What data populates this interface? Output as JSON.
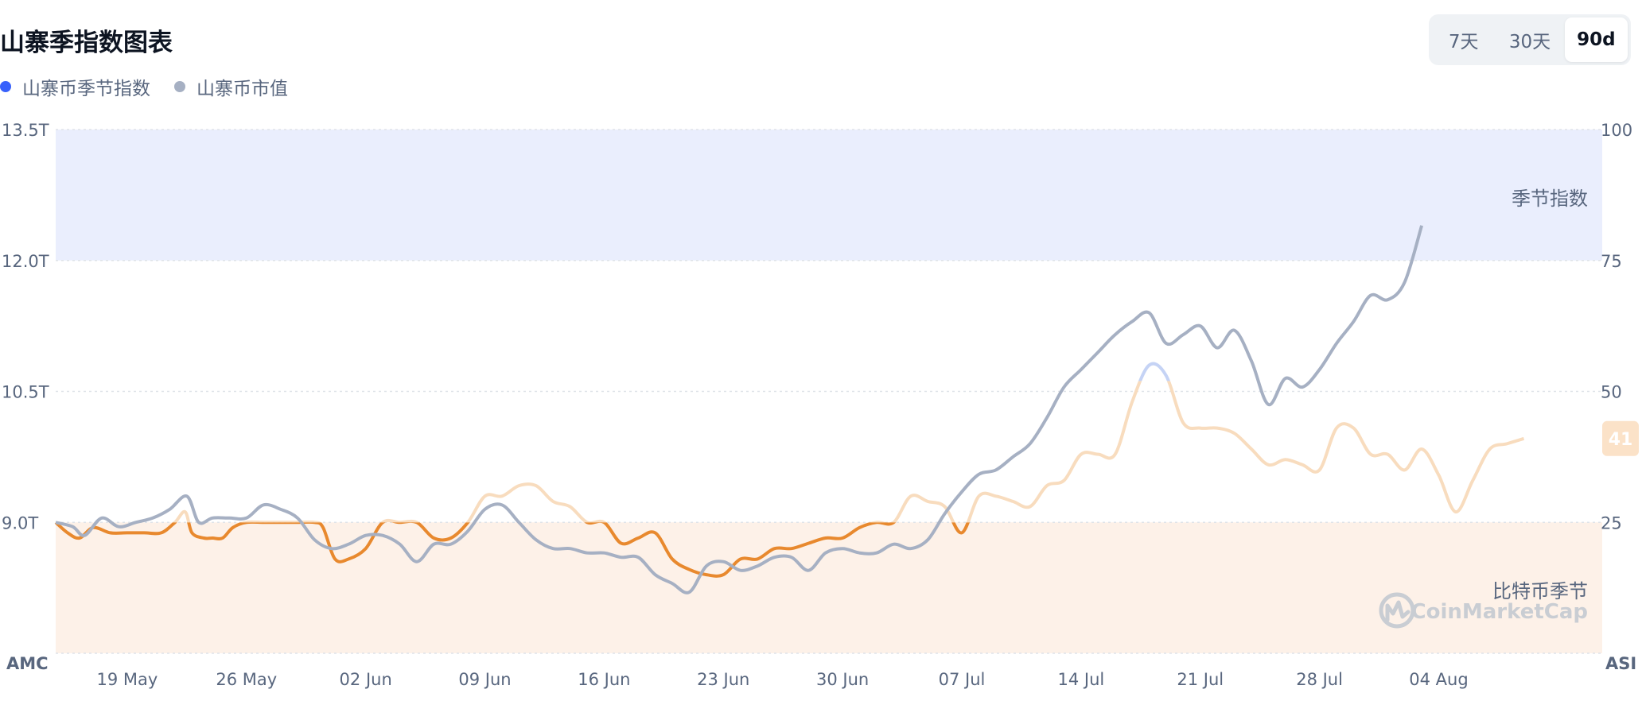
{
  "header": {
    "title": "山寨季指数图表",
    "legend": [
      {
        "label": "山寨币季节指数",
        "color": "#3861fb"
      },
      {
        "label": "山寨币市值",
        "color": "#a6b0c3"
      }
    ],
    "range_buttons": [
      {
        "label": "7天",
        "active": false
      },
      {
        "label": "30天",
        "active": false
      },
      {
        "label": "90d",
        "active": true
      }
    ]
  },
  "colors": {
    "altseason_band": "#eaeefd",
    "bitcoin_band": "#fdf1e8",
    "index_orange": "#e8892e",
    "index_light": "#f8dcbe",
    "index_blue_light": "#c5d3f5",
    "market_cap_gray": "#a6b0c3",
    "badge_bg": "#fbe2c8"
  },
  "chart_data": {
    "type": "line",
    "axis_labels": {
      "left": "AMC",
      "right": "ASI"
    },
    "left_axis": {
      "ticks": [
        "9.0T",
        "10.5T",
        "12.0T",
        "13.5T"
      ],
      "values": [
        9.0,
        10.5,
        12.0,
        13.5
      ],
      "ylim": [
        7.5,
        13.5
      ]
    },
    "right_axis": {
      "ticks": [
        "25",
        "50",
        "75",
        "100"
      ],
      "values": [
        25,
        50,
        75,
        100
      ],
      "ylim": [
        0,
        100
      ]
    },
    "x_ticks": [
      "19 May",
      "26 May",
      "02 Jun",
      "09 Jun",
      "16 Jun",
      "23 Jun",
      "30 Jun",
      "07 Jul",
      "14 Jul",
      "21 Jul",
      "28 Jul",
      "04 Aug"
    ],
    "x_tick_days": [
      6,
      13,
      20,
      27,
      34,
      41,
      48,
      55,
      62,
      69,
      76,
      83
    ],
    "x_range": [
      1.8,
      92.6
    ],
    "zones": [
      {
        "label": "季节指数",
        "from": 75,
        "to": 100
      },
      {
        "label": "比特币季节",
        "from": 0,
        "to": 25
      }
    ],
    "watermark": "CoinMarketCap",
    "current_index_badge": "41",
    "series": [
      {
        "name": "山寨币季节指数",
        "axis": "right",
        "points": [
          [
            1.8,
            25
          ],
          [
            2.5,
            23
          ],
          [
            3.2,
            22
          ],
          [
            4,
            24
          ],
          [
            5,
            23
          ],
          [
            6,
            23
          ],
          [
            7,
            23
          ],
          [
            8,
            23
          ],
          [
            8.8,
            25
          ],
          [
            9.4,
            27
          ],
          [
            9.8,
            23
          ],
          [
            10.5,
            22
          ],
          [
            11,
            22
          ],
          [
            11.6,
            22
          ],
          [
            12.2,
            24
          ],
          [
            13,
            25
          ],
          [
            14,
            25
          ],
          [
            15,
            25
          ],
          [
            16,
            25
          ],
          [
            17,
            25
          ],
          [
            17.5,
            24
          ],
          [
            18.2,
            18
          ],
          [
            19,
            18
          ],
          [
            20,
            20
          ],
          [
            21,
            25
          ],
          [
            22,
            25
          ],
          [
            23,
            25
          ],
          [
            24,
            22
          ],
          [
            25,
            22
          ],
          [
            26,
            25
          ],
          [
            27,
            30
          ],
          [
            28,
            30
          ],
          [
            29,
            32
          ],
          [
            30,
            32
          ],
          [
            31,
            29
          ],
          [
            32,
            28
          ],
          [
            33,
            25
          ],
          [
            34,
            25
          ],
          [
            35,
            21
          ],
          [
            36,
            22
          ],
          [
            37,
            23
          ],
          [
            38,
            18
          ],
          [
            39,
            16
          ],
          [
            40,
            15
          ],
          [
            41,
            15
          ],
          [
            42,
            18
          ],
          [
            43,
            18
          ],
          [
            44,
            20
          ],
          [
            45,
            20
          ],
          [
            46,
            21
          ],
          [
            47,
            22
          ],
          [
            48,
            22
          ],
          [
            49,
            24
          ],
          [
            50,
            25
          ],
          [
            51,
            25
          ],
          [
            52,
            30
          ],
          [
            53,
            29
          ],
          [
            54,
            28
          ],
          [
            55,
            23
          ],
          [
            56,
            30
          ],
          [
            57,
            30
          ],
          [
            58,
            29
          ],
          [
            59,
            28
          ],
          [
            60,
            32
          ],
          [
            61,
            33
          ],
          [
            62,
            38
          ],
          [
            63,
            38
          ],
          [
            64,
            38
          ],
          [
            65,
            48
          ],
          [
            66,
            55
          ],
          [
            67,
            53
          ],
          [
            68,
            44
          ],
          [
            69,
            43
          ],
          [
            70,
            43
          ],
          [
            71,
            42
          ],
          [
            72,
            39
          ],
          [
            73,
            36
          ],
          [
            74,
            37
          ],
          [
            75,
            36
          ],
          [
            76,
            35
          ],
          [
            77,
            43
          ],
          [
            78,
            43
          ],
          [
            79,
            38
          ],
          [
            80,
            38
          ],
          [
            81,
            35
          ],
          [
            82,
            39
          ],
          [
            83,
            34
          ],
          [
            84,
            27
          ],
          [
            85,
            33
          ],
          [
            86,
            39
          ],
          [
            87,
            40
          ],
          [
            88,
            41
          ]
        ]
      },
      {
        "name": "山寨币市值",
        "axis": "left",
        "points": [
          [
            1.8,
            9.0
          ],
          [
            2.8,
            8.95
          ],
          [
            3.5,
            8.85
          ],
          [
            4.5,
            9.05
          ],
          [
            5.5,
            8.95
          ],
          [
            6.5,
            9.0
          ],
          [
            7.5,
            9.05
          ],
          [
            8.5,
            9.15
          ],
          [
            9.5,
            9.3
          ],
          [
            10.2,
            9.0
          ],
          [
            11,
            9.05
          ],
          [
            12,
            9.05
          ],
          [
            13,
            9.05
          ],
          [
            14,
            9.2
          ],
          [
            15,
            9.15
          ],
          [
            16,
            9.05
          ],
          [
            17,
            8.8
          ],
          [
            18,
            8.7
          ],
          [
            19,
            8.75
          ],
          [
            20,
            8.85
          ],
          [
            21,
            8.85
          ],
          [
            22,
            8.75
          ],
          [
            23,
            8.55
          ],
          [
            24,
            8.75
          ],
          [
            25,
            8.75
          ],
          [
            26,
            8.9
          ],
          [
            27,
            9.15
          ],
          [
            28,
            9.2
          ],
          [
            29,
            9.0
          ],
          [
            30,
            8.8
          ],
          [
            31,
            8.7
          ],
          [
            32,
            8.7
          ],
          [
            33,
            8.65
          ],
          [
            34,
            8.65
          ],
          [
            35,
            8.6
          ],
          [
            36,
            8.6
          ],
          [
            37,
            8.4
          ],
          [
            38,
            8.3
          ],
          [
            39,
            8.2
          ],
          [
            40,
            8.5
          ],
          [
            41,
            8.55
          ],
          [
            42,
            8.45
          ],
          [
            43,
            8.5
          ],
          [
            44,
            8.6
          ],
          [
            45,
            8.6
          ],
          [
            46,
            8.45
          ],
          [
            47,
            8.65
          ],
          [
            48,
            8.7
          ],
          [
            49,
            8.65
          ],
          [
            50,
            8.65
          ],
          [
            51,
            8.75
          ],
          [
            52,
            8.7
          ],
          [
            53,
            8.8
          ],
          [
            54,
            9.1
          ],
          [
            55,
            9.35
          ],
          [
            56,
            9.55
          ],
          [
            57,
            9.6
          ],
          [
            58,
            9.75
          ],
          [
            59,
            9.9
          ],
          [
            60,
            10.2
          ],
          [
            61,
            10.55
          ],
          [
            62,
            10.75
          ],
          [
            63,
            10.95
          ],
          [
            64,
            11.15
          ],
          [
            65,
            11.3
          ],
          [
            66,
            11.4
          ],
          [
            67,
            11.05
          ],
          [
            68,
            11.15
          ],
          [
            69,
            11.25
          ],
          [
            70,
            11.0
          ],
          [
            71,
            11.2
          ],
          [
            72,
            10.85
          ],
          [
            73,
            10.35
          ],
          [
            74,
            10.65
          ],
          [
            75,
            10.55
          ],
          [
            76,
            10.75
          ],
          [
            77,
            11.05
          ],
          [
            78,
            11.3
          ],
          [
            79,
            11.6
          ],
          [
            80,
            11.55
          ],
          [
            81,
            11.75
          ],
          [
            82,
            12.4
          ]
        ]
      }
    ]
  }
}
